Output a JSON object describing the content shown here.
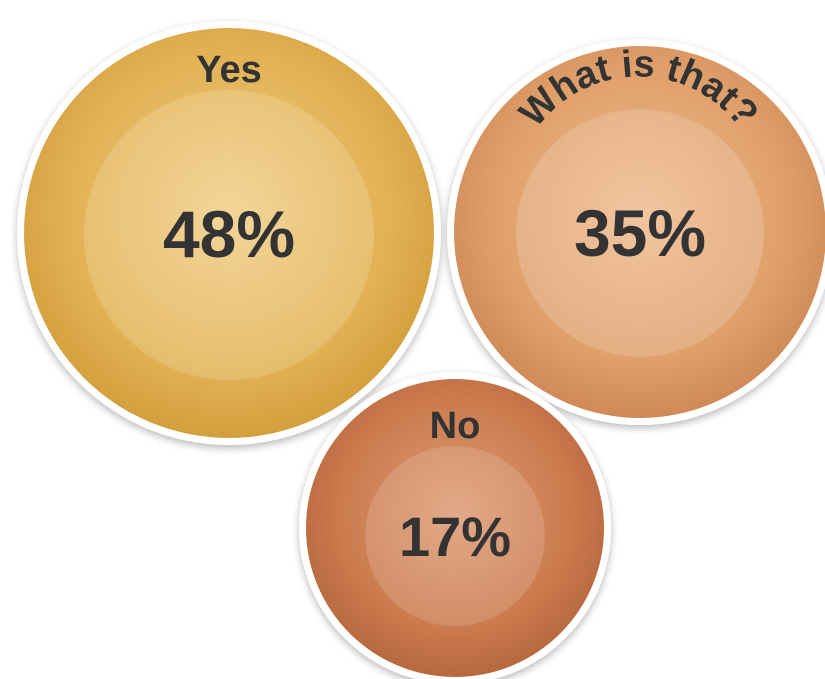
{
  "chart_data": {
    "type": "bubble",
    "title": "",
    "categories": [
      "Yes",
      "What is that?",
      "No"
    ],
    "values": [
      48,
      35,
      17
    ],
    "unit": "%",
    "value_labels": [
      "48%",
      "35%",
      "17%"
    ],
    "colors": [
      "#E0B14F",
      "#DE9A68",
      "#C9774A"
    ]
  }
}
